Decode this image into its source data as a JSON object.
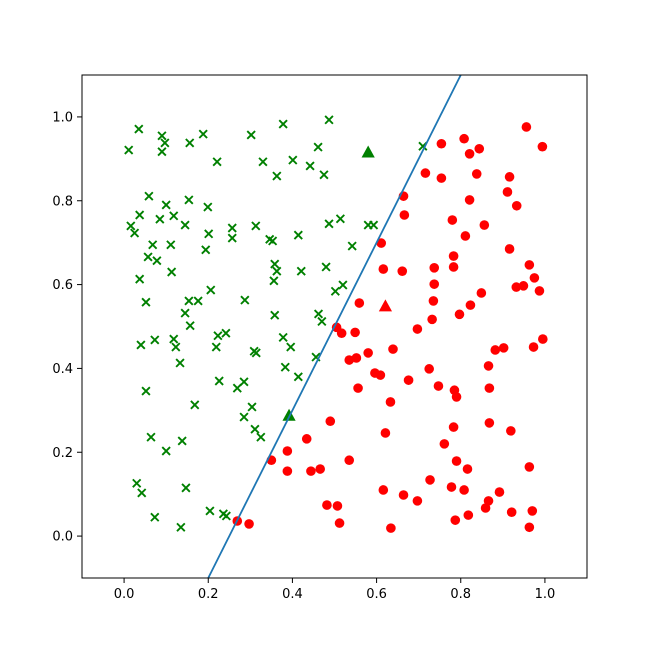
{
  "chart_data": {
    "type": "scatter",
    "title": "",
    "xlabel": "",
    "ylabel": "",
    "grid": false,
    "legend": null,
    "xlim": [
      -0.1,
      1.1
    ],
    "ylim": [
      -0.1,
      1.1
    ],
    "x_ticks": {
      "values": [
        0.0,
        0.2,
        0.4,
        0.6,
        0.8,
        1.0
      ],
      "labels": [
        "0.0",
        "0.2",
        "0.4",
        "0.6",
        "0.8",
        "1.0"
      ]
    },
    "y_ticks": {
      "values": [
        0.0,
        0.2,
        0.4,
        0.6,
        0.8,
        1.0
      ],
      "labels": [
        "0.0",
        "0.2",
        "0.4",
        "0.6",
        "0.8",
        "1.0"
      ]
    },
    "colors": {
      "class_green": "#008000",
      "class_red": "#ff0000",
      "boundary_blue": "#1f77b4",
      "spine": "#000000"
    },
    "series": [
      {
        "name": "green-x-class",
        "marker": "x",
        "color": "#008000",
        "points": [
          [
            0.035,
            0.971
          ],
          [
            0.011,
            0.921
          ],
          [
            0.09,
            0.955
          ],
          [
            0.097,
            0.938
          ],
          [
            0.09,
            0.917
          ],
          [
            0.156,
            0.938
          ],
          [
            0.188,
            0.959
          ],
          [
            0.302,
            0.957
          ],
          [
            0.378,
            0.983
          ],
          [
            0.487,
            0.993
          ],
          [
            0.221,
            0.893
          ],
          [
            0.33,
            0.893
          ],
          [
            0.363,
            0.859
          ],
          [
            0.401,
            0.897
          ],
          [
            0.442,
            0.883
          ],
          [
            0.461,
            0.928
          ],
          [
            0.475,
            0.862
          ],
          [
            0.71,
            0.93
          ],
          [
            0.487,
            0.745
          ],
          [
            0.514,
            0.757
          ],
          [
            0.58,
            0.742
          ],
          [
            0.593,
            0.742
          ],
          [
            0.542,
            0.692
          ],
          [
            0.52,
            0.599
          ],
          [
            0.502,
            0.584
          ],
          [
            0.059,
            0.811
          ],
          [
            0.1,
            0.79
          ],
          [
            0.154,
            0.802
          ],
          [
            0.199,
            0.785
          ],
          [
            0.037,
            0.766
          ],
          [
            0.085,
            0.756
          ],
          [
            0.118,
            0.764
          ],
          [
            0.145,
            0.742
          ],
          [
            0.016,
            0.74
          ],
          [
            0.025,
            0.723
          ],
          [
            0.201,
            0.721
          ],
          [
            0.257,
            0.735
          ],
          [
            0.257,
            0.711
          ],
          [
            0.313,
            0.74
          ],
          [
            0.346,
            0.708
          ],
          [
            0.353,
            0.704
          ],
          [
            0.414,
            0.718
          ],
          [
            0.068,
            0.695
          ],
          [
            0.111,
            0.695
          ],
          [
            0.194,
            0.683
          ],
          [
            0.057,
            0.666
          ],
          [
            0.078,
            0.657
          ],
          [
            0.113,
            0.63
          ],
          [
            0.037,
            0.613
          ],
          [
            0.358,
            0.649
          ],
          [
            0.363,
            0.632
          ],
          [
            0.421,
            0.632
          ],
          [
            0.48,
            0.642
          ],
          [
            0.356,
            0.609
          ],
          [
            0.206,
            0.587
          ],
          [
            0.154,
            0.561
          ],
          [
            0.176,
            0.561
          ],
          [
            0.052,
            0.558
          ],
          [
            0.287,
            0.563
          ],
          [
            0.358,
            0.527
          ],
          [
            0.462,
            0.53
          ],
          [
            0.47,
            0.512
          ],
          [
            0.145,
            0.532
          ],
          [
            0.157,
            0.502
          ],
          [
            0.04,
            0.456
          ],
          [
            0.073,
            0.468
          ],
          [
            0.118,
            0.47
          ],
          [
            0.123,
            0.451
          ],
          [
            0.133,
            0.413
          ],
          [
            0.052,
            0.346
          ],
          [
            0.168,
            0.313
          ],
          [
            0.223,
            0.478
          ],
          [
            0.242,
            0.484
          ],
          [
            0.219,
            0.451
          ],
          [
            0.309,
            0.441
          ],
          [
            0.314,
            0.437
          ],
          [
            0.378,
            0.474
          ],
          [
            0.396,
            0.451
          ],
          [
            0.456,
            0.427
          ],
          [
            0.383,
            0.403
          ],
          [
            0.414,
            0.38
          ],
          [
            0.226,
            0.37
          ],
          [
            0.269,
            0.353
          ],
          [
            0.285,
            0.368
          ],
          [
            0.304,
            0.308
          ],
          [
            0.285,
            0.284
          ],
          [
            0.311,
            0.255
          ],
          [
            0.325,
            0.236
          ],
          [
            0.064,
            0.236
          ],
          [
            0.138,
            0.227
          ],
          [
            0.1,
            0.203
          ],
          [
            0.03,
            0.126
          ],
          [
            0.042,
            0.103
          ],
          [
            0.147,
            0.115
          ],
          [
            0.204,
            0.06
          ],
          [
            0.236,
            0.053
          ],
          [
            0.243,
            0.048
          ],
          [
            0.073,
            0.045
          ],
          [
            0.135,
            0.021
          ]
        ]
      },
      {
        "name": "red-dot-class",
        "marker": "circle",
        "color": "#ff0000",
        "points": [
          [
            0.754,
            0.936
          ],
          [
            0.808,
            0.948
          ],
          [
            0.844,
            0.924
          ],
          [
            0.821,
            0.912
          ],
          [
            0.956,
            0.976
          ],
          [
            0.994,
            0.929
          ],
          [
            0.664,
            0.811
          ],
          [
            0.716,
            0.866
          ],
          [
            0.754,
            0.854
          ],
          [
            0.838,
            0.864
          ],
          [
            0.821,
            0.802
          ],
          [
            0.916,
            0.857
          ],
          [
            0.911,
            0.821
          ],
          [
            0.933,
            0.788
          ],
          [
            0.666,
            0.766
          ],
          [
            0.78,
            0.754
          ],
          [
            0.856,
            0.742
          ],
          [
            0.811,
            0.716
          ],
          [
            0.611,
            0.699
          ],
          [
            0.783,
            0.668
          ],
          [
            0.783,
            0.642
          ],
          [
            0.737,
            0.64
          ],
          [
            0.916,
            0.685
          ],
          [
            0.963,
            0.647
          ],
          [
            0.975,
            0.616
          ],
          [
            0.932,
            0.594
          ],
          [
            0.949,
            0.597
          ],
          [
            0.987,
            0.585
          ],
          [
            0.737,
            0.601
          ],
          [
            0.735,
            0.561
          ],
          [
            0.616,
            0.637
          ],
          [
            0.661,
            0.632
          ],
          [
            0.559,
            0.556
          ],
          [
            0.849,
            0.58
          ],
          [
            0.823,
            0.551
          ],
          [
            0.797,
            0.529
          ],
          [
            0.732,
            0.517
          ],
          [
            0.505,
            0.498
          ],
          [
            0.517,
            0.484
          ],
          [
            0.549,
            0.486
          ],
          [
            0.697,
            0.494
          ],
          [
            0.58,
            0.437
          ],
          [
            0.639,
            0.446
          ],
          [
            0.535,
            0.42
          ],
          [
            0.552,
            0.425
          ],
          [
            0.596,
            0.389
          ],
          [
            0.609,
            0.384
          ],
          [
            0.725,
            0.399
          ],
          [
            0.676,
            0.372
          ],
          [
            0.747,
            0.358
          ],
          [
            0.556,
            0.353
          ],
          [
            0.785,
            0.348
          ],
          [
            0.79,
            0.332
          ],
          [
            0.868,
            0.353
          ],
          [
            0.633,
            0.32
          ],
          [
            0.882,
            0.444
          ],
          [
            0.902,
            0.449
          ],
          [
            0.973,
            0.451
          ],
          [
            0.995,
            0.47
          ],
          [
            0.866,
            0.406
          ],
          [
            0.49,
            0.274
          ],
          [
            0.434,
            0.232
          ],
          [
            0.388,
            0.203
          ],
          [
            0.35,
            0.181
          ],
          [
            0.388,
            0.155
          ],
          [
            0.444,
            0.155
          ],
          [
            0.466,
            0.16
          ],
          [
            0.868,
            0.27
          ],
          [
            0.919,
            0.251
          ],
          [
            0.783,
            0.26
          ],
          [
            0.621,
            0.246
          ],
          [
            0.761,
            0.22
          ],
          [
            0.535,
            0.181
          ],
          [
            0.79,
            0.179
          ],
          [
            0.816,
            0.16
          ],
          [
            0.963,
            0.165
          ],
          [
            0.727,
            0.134
          ],
          [
            0.778,
            0.117
          ],
          [
            0.808,
            0.11
          ],
          [
            0.616,
            0.11
          ],
          [
            0.664,
            0.098
          ],
          [
            0.697,
            0.084
          ],
          [
            0.482,
            0.074
          ],
          [
            0.507,
            0.072
          ],
          [
            0.866,
            0.084
          ],
          [
            0.859,
            0.067
          ],
          [
            0.892,
            0.105
          ],
          [
            0.921,
            0.057
          ],
          [
            0.97,
            0.06
          ],
          [
            0.787,
            0.038
          ],
          [
            0.818,
            0.05
          ],
          [
            0.634,
            0.019
          ],
          [
            0.963,
            0.021
          ],
          [
            0.512,
            0.031
          ],
          [
            0.269,
            0.036
          ],
          [
            0.297,
            0.029
          ]
        ]
      },
      {
        "name": "green-triangle-highlights",
        "marker": "triangle-up",
        "color": "#008000",
        "points": [
          [
            0.58,
            0.915
          ],
          [
            0.392,
            0.287
          ]
        ]
      },
      {
        "name": "red-triangle-highlight",
        "marker": "triangle-up",
        "color": "#ff0000",
        "points": [
          [
            0.621,
            0.548
          ]
        ]
      }
    ],
    "line": {
      "name": "decision-boundary",
      "color": "#1f77b4",
      "x": [
        0.2,
        0.8
      ],
      "y": [
        -0.1,
        1.1
      ]
    }
  }
}
